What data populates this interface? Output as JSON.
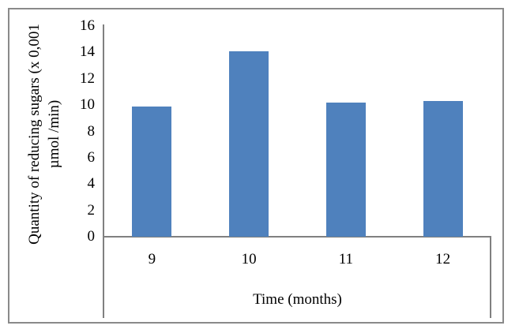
{
  "figure": {
    "background": "#ffffff",
    "border_color": "#8a8a8a"
  },
  "chart_data": {
    "type": "bar",
    "title": "",
    "categories": [
      "9",
      "10",
      "11",
      "12"
    ],
    "values": [
      9.9,
      14.1,
      10.2,
      10.3
    ],
    "series": [
      {
        "name": "Quantity of reducing sugars",
        "values": [
          9.9,
          14.1,
          10.2,
          10.3
        ]
      }
    ],
    "xlabel": "Time (months)",
    "ylabel": "Quantity of reducing sugars (x 0,001 µmol /min)",
    "ylabel_line1": "Quantity of reducing sugars (x 0,001",
    "ylabel_line2": "µmol /min)",
    "ylim": [
      0,
      16
    ],
    "ytick_step": 2,
    "yticks": [
      16,
      14,
      12,
      10,
      8,
      6,
      4,
      2,
      0
    ],
    "bar_color": "#4F81BD",
    "axis_color": "#808080",
    "grid": false,
    "legend_position": "none"
  }
}
